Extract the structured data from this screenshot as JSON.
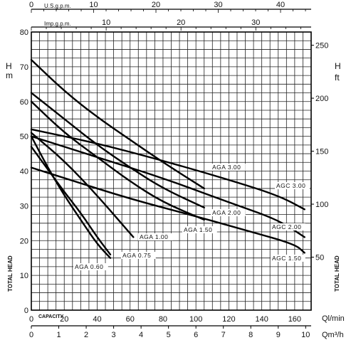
{
  "chart_data": {
    "type": "line",
    "axes": {
      "left": {
        "label_top": "H",
        "label_unit": "m",
        "side_label": "TOTAL HEAD",
        "ylim": [
          0,
          80
        ],
        "ticks": [
          0,
          10,
          20,
          30,
          40,
          50,
          60,
          70,
          80
        ]
      },
      "right": {
        "label_top": "H",
        "label_unit": "ft",
        "side_label": "TOTAL HEAD",
        "ticks": [
          50,
          100,
          150,
          200,
          250
        ]
      },
      "bottom1": {
        "label": "Ql/min",
        "label_extra": "CAPACITY",
        "xlim": [
          0,
          170
        ],
        "ticks": [
          0,
          20,
          40,
          60,
          80,
          100,
          120,
          140,
          160
        ]
      },
      "bottom2": {
        "label": "Qm³/h",
        "ticks": [
          0,
          1,
          2,
          3,
          4,
          5,
          6,
          7,
          8,
          9,
          10
        ]
      },
      "top1": {
        "label": "U.S.g.p.m.",
        "ticks": [
          0,
          10,
          20,
          30,
          40
        ]
      },
      "top2": {
        "label": "Imp.g.p.m.",
        "ticks": [
          10,
          20,
          30
        ]
      }
    },
    "grid": true,
    "series": [
      {
        "name": "AGA 0.60",
        "x": [
          0,
          10,
          20,
          30,
          40,
          48
        ],
        "y": [
          50,
          41,
          33,
          26,
          19,
          15
        ]
      },
      {
        "name": "AGA 0.75",
        "x": [
          0,
          10,
          20,
          30,
          40,
          48
        ],
        "y": [
          47,
          40.5,
          34,
          28,
          21,
          16
        ]
      },
      {
        "name": "AGA 1.00",
        "x": [
          0,
          20,
          40,
          62
        ],
        "y": [
          51,
          43,
          33,
          21
        ]
      },
      {
        "name": "AGA 1.50",
        "x": [
          0,
          20,
          40,
          60,
          80,
          105
        ],
        "y": [
          60,
          51,
          44,
          37,
          31,
          26
        ]
      },
      {
        "name": "AGA 2.00",
        "x": [
          0,
          20,
          40,
          60,
          80,
          105
        ],
        "y": [
          62.5,
          55,
          47.5,
          41,
          35,
          29.5
        ]
      },
      {
        "name": "AGA 3.00",
        "x": [
          0,
          20,
          40,
          60,
          80,
          105
        ],
        "y": [
          72,
          63,
          55.5,
          49,
          42.5,
          35
        ]
      },
      {
        "name": "AGC 1.50",
        "x": [
          0,
          20,
          60,
          100,
          130,
          160,
          166
        ],
        "y": [
          41,
          38,
          32,
          27,
          23,
          19,
          16.5
        ]
      },
      {
        "name": "AGC 2.00",
        "x": [
          0,
          40,
          80,
          120,
          150,
          166
        ],
        "y": [
          50,
          44,
          38,
          31,
          26,
          21
        ]
      },
      {
        "name": "AGC 3.00",
        "x": [
          0,
          40,
          80,
          120,
          150,
          166
        ],
        "y": [
          52,
          48,
          43,
          37.5,
          33,
          29
        ]
      }
    ],
    "labels": [
      {
        "text": "AGA 0.60",
        "series": "AGA 0.60"
      },
      {
        "text": "AGA 0.75",
        "series": "AGA 0.75"
      },
      {
        "text": "AGA 1.00",
        "series": "AGA 1.00"
      },
      {
        "text": "AGA 1.50",
        "series": "AGA 1.50"
      },
      {
        "text": "AGA 2.00",
        "series": "AGA 2.00"
      },
      {
        "text": "AGA 3.00",
        "series": "AGA 3.00"
      },
      {
        "text": "AGC 1.50",
        "series": "AGC 1.50"
      },
      {
        "text": "AGC 2.00",
        "series": "AGC 2.00"
      },
      {
        "text": "AGC 3.00",
        "series": "AGC 3.00"
      }
    ]
  }
}
